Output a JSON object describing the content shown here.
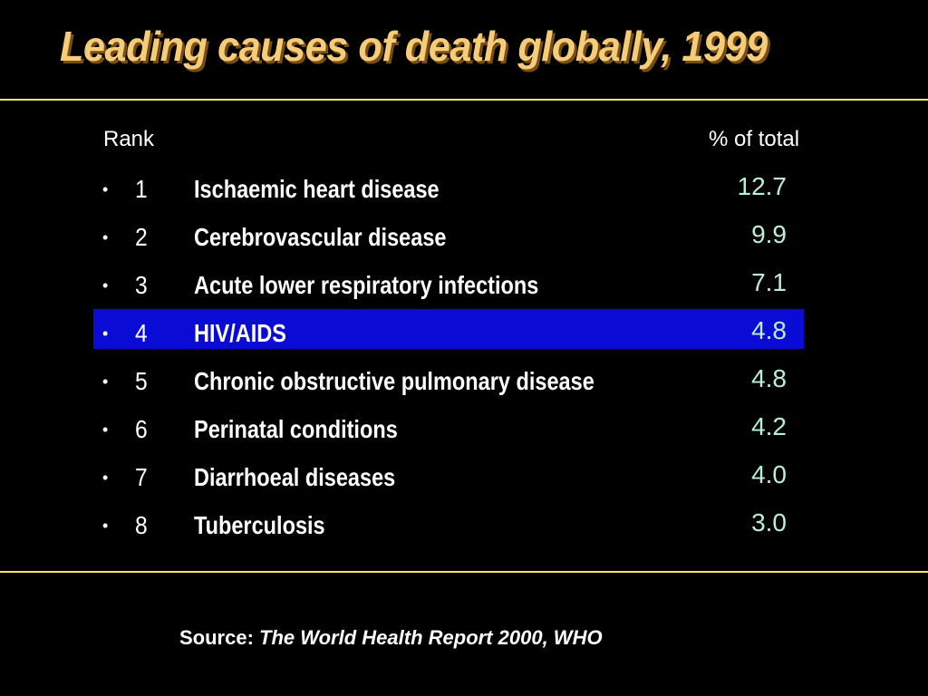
{
  "slide": {
    "title": "Leading causes of death globally, 1999",
    "headers": {
      "rank": "Rank",
      "percent": "% of total"
    },
    "rows": [
      {
        "bullet": "•",
        "rank": "1",
        "cause": "Ischaemic heart disease",
        "percent": "12.7"
      },
      {
        "bullet": "•",
        "rank": "2",
        "cause": "Cerebrovascular disease",
        "percent": "9.9"
      },
      {
        "bullet": "•",
        "rank": "3",
        "cause": "Acute lower respiratory infections",
        "percent": "7.1"
      },
      {
        "bullet": "•",
        "rank": "4",
        "cause": "HIV/AIDS",
        "percent": "4.8",
        "highlighted": true
      },
      {
        "bullet": "•",
        "rank": "5",
        "cause": "Chronic obstructive pulmonary disease",
        "percent": "4.8"
      },
      {
        "bullet": "•",
        "rank": "6",
        "cause": "Perinatal conditions",
        "percent": "4.2"
      },
      {
        "bullet": "•",
        "rank": "7",
        "cause": "Diarrhoeal diseases",
        "percent": "4.0"
      },
      {
        "bullet": "•",
        "rank": "8",
        "cause": "Tuberculosis",
        "percent": "3.0"
      }
    ],
    "source": {
      "label": "Source: ",
      "reference": "The World Health Report 2000, WHO"
    }
  },
  "colors": {
    "background": "#000000",
    "title": "#F5CC79",
    "rule": "#F2E36B",
    "highlight": "#0B0BD6",
    "value_text": "#B9F0D5",
    "text": "#FFFFFF"
  }
}
